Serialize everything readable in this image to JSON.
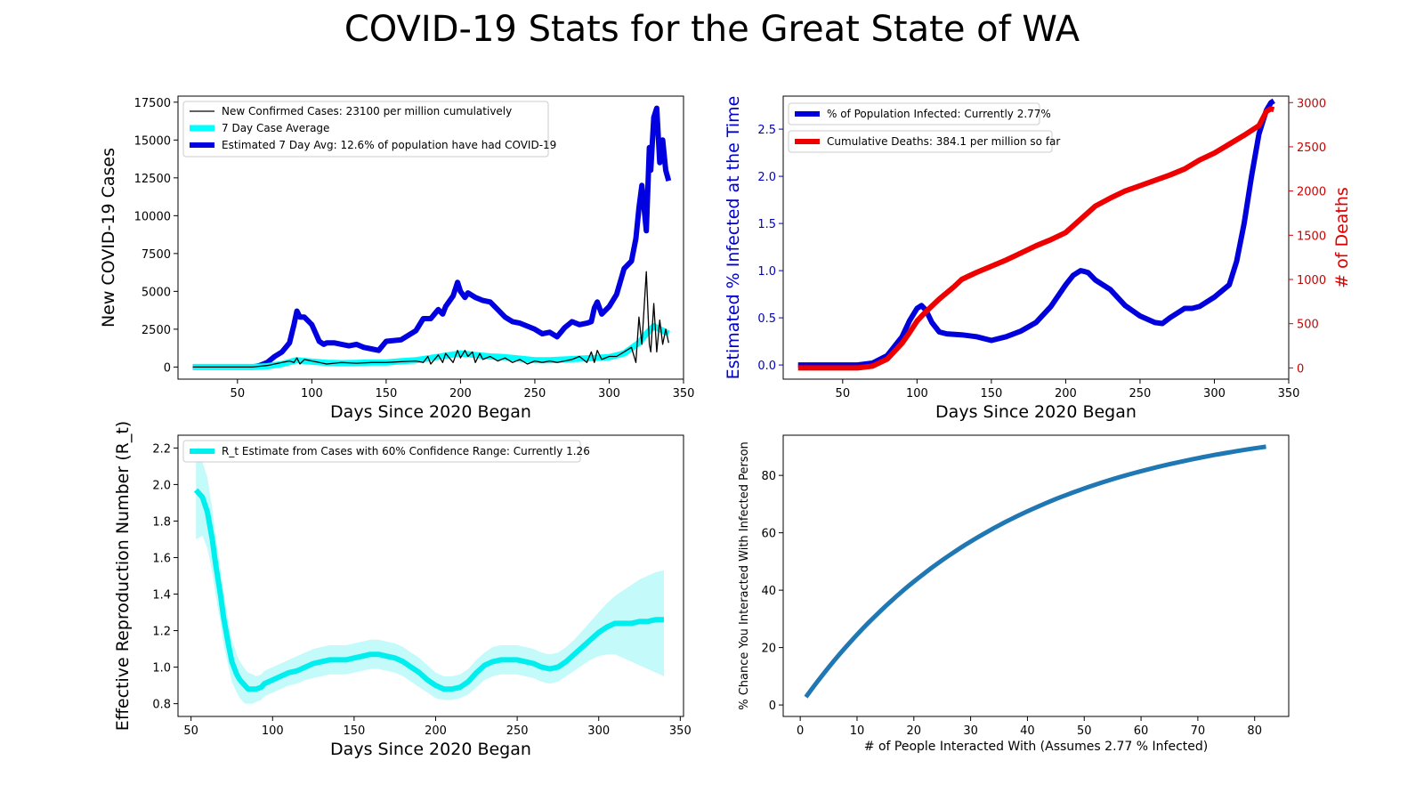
{
  "page_title": "COVID-19 Stats for the Great State of WA",
  "chart_data": [
    {
      "type": "line",
      "xlabel": "Days Since 2020 Began",
      "ylabel": "New COVID-19 Cases",
      "xlim": [
        10,
        350
      ],
      "ylim": [
        -800,
        17900
      ],
      "xticks": [
        50,
        100,
        150,
        200,
        250,
        300,
        350
      ],
      "yticks": [
        0,
        2500,
        5000,
        7500,
        10000,
        12500,
        15000,
        17500
      ],
      "legend_position": "top-left",
      "series": [
        {
          "name": "New Confirmed Cases: 23100 per million cumulatively",
          "color": "#000000",
          "x": [
            20,
            40,
            60,
            70,
            75,
            80,
            85,
            88,
            90,
            92,
            95,
            100,
            105,
            110,
            120,
            130,
            140,
            150,
            160,
            170,
            175,
            178,
            180,
            185,
            188,
            190,
            195,
            198,
            200,
            203,
            205,
            208,
            210,
            213,
            215,
            220,
            225,
            230,
            235,
            240,
            245,
            250,
            255,
            260,
            265,
            270,
            275,
            280,
            285,
            288,
            290,
            292,
            295,
            300,
            305,
            310,
            315,
            318,
            320,
            322,
            325,
            327,
            328,
            330,
            332,
            334,
            336,
            338,
            340
          ],
          "y": [
            0,
            0,
            0,
            100,
            200,
            300,
            400,
            300,
            600,
            200,
            500,
            400,
            300,
            200,
            300,
            250,
            300,
            300,
            350,
            400,
            300,
            700,
            200,
            800,
            300,
            900,
            300,
            1100,
            600,
            1100,
            700,
            1000,
            300,
            900,
            500,
            700,
            400,
            600,
            300,
            500,
            200,
            400,
            300,
            400,
            300,
            400,
            500,
            700,
            300,
            1000,
            300,
            1100,
            500,
            700,
            700,
            1000,
            1300,
            300,
            3300,
            1500,
            6300,
            1500,
            1000,
            4200,
            1000,
            3100,
            1500,
            2500,
            1600
          ]
        },
        {
          "name": "7 Day Case Average",
          "color": "#00ffff",
          "x": [
            20,
            60,
            70,
            80,
            90,
            100,
            110,
            120,
            130,
            140,
            150,
            160,
            170,
            180,
            190,
            200,
            210,
            220,
            230,
            240,
            250,
            260,
            270,
            280,
            290,
            300,
            310,
            320,
            325,
            330,
            334,
            338,
            340
          ],
          "y": [
            0,
            0,
            50,
            200,
            450,
            350,
            280,
            250,
            270,
            300,
            300,
            380,
            450,
            600,
            750,
            900,
            800,
            700,
            650,
            550,
            450,
            450,
            500,
            550,
            600,
            650,
            900,
            1600,
            2200,
            2700,
            2500,
            2300,
            2200
          ]
        },
        {
          "name": "Estimated 7 Day Avg: 12.6% of population have had COVID-19",
          "color": "#0000e0",
          "x": [
            20,
            60,
            65,
            70,
            75,
            80,
            85,
            88,
            90,
            92,
            95,
            100,
            105,
            108,
            110,
            115,
            120,
            125,
            130,
            135,
            140,
            145,
            150,
            160,
            170,
            175,
            180,
            185,
            188,
            190,
            195,
            198,
            200,
            203,
            205,
            210,
            215,
            220,
            225,
            230,
            235,
            240,
            245,
            250,
            255,
            260,
            265,
            270,
            275,
            280,
            285,
            288,
            290,
            292,
            295,
            300,
            305,
            310,
            315,
            318,
            320,
            322,
            325,
            327,
            328,
            330,
            332,
            334,
            336,
            338,
            340
          ],
          "y": [
            0,
            0,
            100,
            300,
            700,
            1000,
            1600,
            2800,
            3700,
            3300,
            3300,
            2800,
            1700,
            1500,
            1600,
            1600,
            1500,
            1400,
            1500,
            1300,
            1200,
            1100,
            1700,
            1800,
            2400,
            3200,
            3200,
            3800,
            3500,
            4000,
            4700,
            5600,
            5000,
            4600,
            4900,
            4600,
            4400,
            4300,
            3800,
            3300,
            3000,
            2900,
            2700,
            2500,
            2200,
            2300,
            2000,
            2600,
            3000,
            2800,
            2900,
            3000,
            3900,
            4300,
            3500,
            4000,
            4800,
            6500,
            7000,
            8500,
            10500,
            12000,
            9000,
            14500,
            13000,
            16500,
            17100,
            13500,
            15000,
            13000,
            12300
          ]
        }
      ]
    },
    {
      "type": "line",
      "xlabel": "Days Since 2020 Began",
      "ylabel": "Estimated % Infected at the Time",
      "y2label": "# of Deaths",
      "xlim": [
        10,
        350
      ],
      "ylim": [
        -0.15,
        2.85
      ],
      "y2lim": [
        -127,
        3073
      ],
      "xticks": [
        50,
        100,
        150,
        200,
        250,
        300,
        350
      ],
      "yticks": [
        "0.0",
        "0.5",
        "1.0",
        "1.5",
        "2.0",
        "2.5"
      ],
      "y2ticks": [
        "0",
        "500",
        "1000",
        "1500",
        "2000",
        "2500",
        "3000"
      ],
      "legend_position": "top-left",
      "series": [
        {
          "name": "% of Population Infected: Currently 2.77%",
          "color": "#0000dd",
          "axis": "left",
          "x": [
            20,
            60,
            70,
            80,
            90,
            95,
            100,
            103,
            106,
            110,
            115,
            120,
            130,
            140,
            150,
            160,
            170,
            180,
            190,
            200,
            205,
            210,
            213,
            215,
            220,
            230,
            240,
            250,
            260,
            265,
            270,
            280,
            285,
            290,
            300,
            310,
            315,
            320,
            325,
            330,
            335,
            338,
            340
          ],
          "y": [
            0,
            0,
            0.02,
            0.1,
            0.3,
            0.47,
            0.6,
            0.63,
            0.58,
            0.45,
            0.35,
            0.33,
            0.32,
            0.3,
            0.26,
            0.3,
            0.36,
            0.45,
            0.62,
            0.85,
            0.95,
            1.0,
            0.99,
            0.98,
            0.9,
            0.8,
            0.63,
            0.52,
            0.45,
            0.44,
            0.5,
            0.6,
            0.6,
            0.62,
            0.72,
            0.85,
            1.1,
            1.5,
            2.0,
            2.45,
            2.7,
            2.78,
            2.8
          ]
        },
        {
          "name": "Cumulative Deaths: 384.1 per million so far",
          "color": "#ee0000",
          "axis": "right",
          "x": [
            20,
            60,
            70,
            80,
            90,
            95,
            100,
            105,
            110,
            115,
            120,
            125,
            130,
            135,
            140,
            150,
            160,
            170,
            180,
            190,
            200,
            210,
            220,
            230,
            240,
            250,
            260,
            270,
            280,
            290,
            300,
            310,
            320,
            330,
            335,
            338,
            340
          ],
          "y": [
            0,
            0,
            20,
            100,
            280,
            400,
            530,
            620,
            700,
            780,
            850,
            920,
            1000,
            1040,
            1080,
            1150,
            1220,
            1300,
            1380,
            1450,
            1530,
            1680,
            1830,
            1920,
            2000,
            2060,
            2120,
            2180,
            2250,
            2350,
            2430,
            2530,
            2630,
            2740,
            2900,
            2930,
            2920
          ]
        }
      ]
    },
    {
      "type": "line",
      "xlabel": "Days Since 2020 Began",
      "ylabel": "Effective Reproduction Number (R_t)",
      "xlim": [
        42,
        352
      ],
      "ylim": [
        0.73,
        2.27
      ],
      "xticks": [
        50,
        100,
        150,
        200,
        250,
        300,
        350
      ],
      "yticks": [
        "0.8",
        "1.0",
        "1.2",
        "1.4",
        "1.6",
        "1.8",
        "2.0",
        "2.2"
      ],
      "legend_position": "top-left",
      "series": [
        {
          "name": "R_t Estimate from Cases with 60% Confidence Range: Currently 1.26",
          "color": "#00eeee",
          "band_color": "#c4fafa",
          "x": [
            53,
            57,
            60,
            63,
            65,
            68,
            70,
            73,
            75,
            78,
            80,
            83,
            85,
            88,
            90,
            93,
            95,
            100,
            105,
            110,
            115,
            120,
            125,
            130,
            135,
            140,
            145,
            150,
            155,
            160,
            165,
            170,
            175,
            180,
            185,
            190,
            195,
            200,
            205,
            210,
            215,
            220,
            225,
            230,
            235,
            240,
            245,
            250,
            255,
            260,
            265,
            270,
            275,
            280,
            285,
            290,
            295,
            300,
            305,
            310,
            315,
            320,
            325,
            330,
            335,
            340
          ],
          "y": [
            1.97,
            1.93,
            1.85,
            1.7,
            1.57,
            1.4,
            1.27,
            1.12,
            1.03,
            0.96,
            0.93,
            0.9,
            0.88,
            0.88,
            0.88,
            0.89,
            0.91,
            0.93,
            0.95,
            0.97,
            0.98,
            1.0,
            1.02,
            1.03,
            1.04,
            1.04,
            1.04,
            1.05,
            1.06,
            1.07,
            1.07,
            1.06,
            1.05,
            1.03,
            1.0,
            0.97,
            0.93,
            0.9,
            0.88,
            0.88,
            0.89,
            0.92,
            0.97,
            1.01,
            1.03,
            1.04,
            1.04,
            1.04,
            1.03,
            1.02,
            1.0,
            0.99,
            1.0,
            1.03,
            1.07,
            1.11,
            1.15,
            1.19,
            1.22,
            1.24,
            1.24,
            1.24,
            1.25,
            1.25,
            1.26,
            1.26
          ],
          "lower": [
            1.7,
            1.72,
            1.65,
            1.52,
            1.4,
            1.25,
            1.12,
            1.0,
            0.92,
            0.86,
            0.83,
            0.8,
            0.8,
            0.8,
            0.81,
            0.82,
            0.84,
            0.86,
            0.88,
            0.9,
            0.91,
            0.93,
            0.94,
            0.95,
            0.96,
            0.96,
            0.96,
            0.97,
            0.98,
            0.99,
            0.99,
            0.98,
            0.97,
            0.95,
            0.92,
            0.89,
            0.86,
            0.83,
            0.82,
            0.82,
            0.83,
            0.85,
            0.89,
            0.93,
            0.95,
            0.96,
            0.96,
            0.96,
            0.95,
            0.94,
            0.92,
            0.91,
            0.92,
            0.95,
            0.98,
            1.01,
            1.04,
            1.06,
            1.07,
            1.07,
            1.05,
            1.03,
            1.01,
            0.99,
            0.97,
            0.95
          ],
          "upper": [
            2.2,
            2.12,
            2.04,
            1.87,
            1.73,
            1.55,
            1.41,
            1.25,
            1.15,
            1.07,
            1.03,
            0.99,
            0.97,
            0.96,
            0.95,
            0.96,
            0.98,
            1.0,
            1.02,
            1.04,
            1.06,
            1.08,
            1.1,
            1.11,
            1.12,
            1.12,
            1.12,
            1.13,
            1.14,
            1.15,
            1.15,
            1.14,
            1.13,
            1.11,
            1.08,
            1.05,
            1.01,
            0.97,
            0.95,
            0.95,
            0.96,
            0.99,
            1.04,
            1.08,
            1.11,
            1.12,
            1.12,
            1.12,
            1.11,
            1.1,
            1.08,
            1.07,
            1.08,
            1.11,
            1.15,
            1.2,
            1.25,
            1.3,
            1.35,
            1.39,
            1.42,
            1.45,
            1.48,
            1.5,
            1.52,
            1.53
          ]
        }
      ]
    },
    {
      "type": "line",
      "xlabel": "# of People Interacted With (Assumes 2.77 % Infected)",
      "ylabel": "% Chance You Interacted With Infected Person",
      "xlim": [
        -3,
        86
      ],
      "ylim": [
        -4,
        94
      ],
      "xticks": [
        0,
        10,
        20,
        30,
        40,
        50,
        60,
        70,
        80
      ],
      "yticks": [
        0,
        20,
        40,
        60,
        80
      ],
      "series": [
        {
          "name": "",
          "color": "#1f77b4",
          "infected_fraction": 0.0277,
          "x_range": [
            1,
            82
          ]
        }
      ]
    }
  ]
}
